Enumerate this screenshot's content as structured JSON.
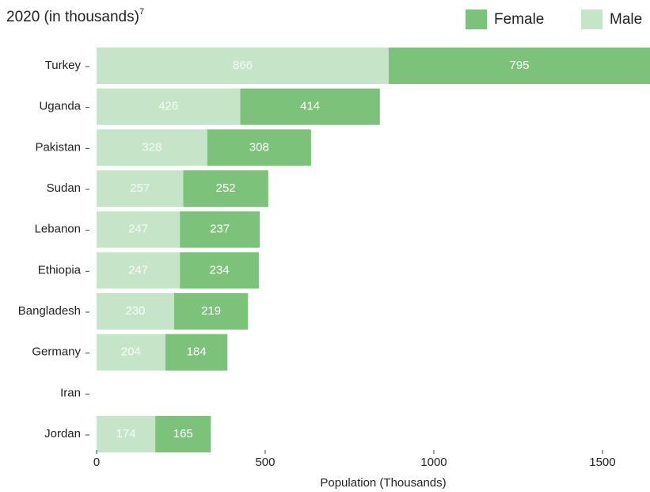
{
  "chart_data": {
    "type": "stacked_barh",
    "title": "2020 (in thousands)",
    "title_note": "7",
    "xlabel": "Population (Thousands)",
    "categories": [
      "Turkey",
      "Uganda",
      "Pakistan",
      "Sudan",
      "Lebanon",
      "Ethiopia",
      "Bangladesh",
      "Germany",
      "Iran",
      "Jordan"
    ],
    "series": [
      {
        "name": "Male",
        "color": "#c6e5c8",
        "values": [
          866,
          426,
          328,
          257,
          247,
          247,
          230,
          204,
          null,
          174
        ]
      },
      {
        "name": "Female",
        "color": "#7dc27a",
        "values": [
          795,
          414,
          308,
          252,
          237,
          234,
          219,
          184,
          null,
          165
        ]
      }
    ],
    "xlim": [
      0,
      1641
    ],
    "xticks": [
      0,
      500,
      1000,
      1500
    ],
    "legend": "top-right"
  }
}
